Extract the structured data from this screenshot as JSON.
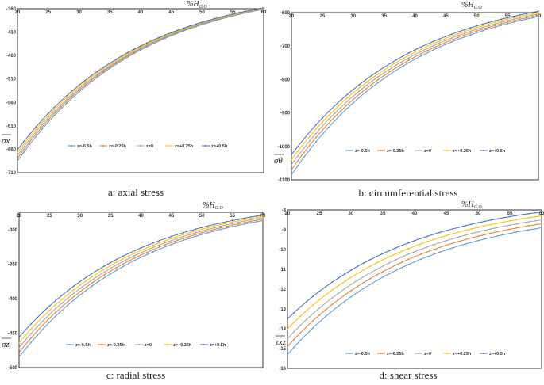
{
  "legend_labels": [
    "z=-0.5h",
    "z=-0.25h",
    "z=0",
    "z=+0.25h",
    "z=+0.5h"
  ],
  "series_colors": [
    "#5B9BD5",
    "#ED7D31",
    "#A5A5A5",
    "#FFC000",
    "#4472C4"
  ],
  "x_title_main": "%H",
  "x_title_sub": "G.O",
  "chart_data": [
    {
      "type": "line",
      "caption": "a: axial stress",
      "y_title": "σx",
      "x_range": [
        20,
        60
      ],
      "x_ticks": [
        "20",
        "25",
        "30",
        "35",
        "40",
        "45",
        "50",
        "55",
        "60"
      ],
      "y_range": [
        -710,
        -360
      ],
      "y_ticks": [
        "-360",
        "-410",
        "-460",
        "-510",
        "-560",
        "-610",
        "-660",
        "-710"
      ],
      "series": [
        {
          "name": "z=-0.5h",
          "start": -685,
          "end": -361
        },
        {
          "name": "z=-0.25h",
          "start": -679,
          "end": -360
        },
        {
          "name": "z=0",
          "start": -673,
          "end": -360
        },
        {
          "name": "z=+0.25h",
          "start": -667,
          "end": -359
        },
        {
          "name": "z=+0.5h",
          "start": -661,
          "end": -358
        }
      ]
    },
    {
      "type": "line",
      "caption": "b: circumferential stress",
      "y_title": "σθ",
      "x_range": [
        20,
        60
      ],
      "x_ticks": [
        "20",
        "25",
        "30",
        "35",
        "40",
        "45",
        "50",
        "55",
        "60"
      ],
      "y_range": [
        -1100,
        -600
      ],
      "y_ticks": [
        "-600",
        "-700",
        "-800",
        "-900",
        "-1000",
        "-1100"
      ],
      "series": [
        {
          "name": "z=-0.5h",
          "start": -1085,
          "end": -612
        },
        {
          "name": "z=-0.25h",
          "start": -1070,
          "end": -608
        },
        {
          "name": "z=0",
          "start": -1055,
          "end": -604
        },
        {
          "name": "z=+0.25h",
          "start": -1040,
          "end": -600
        },
        {
          "name": "z=+0.5h",
          "start": -1025,
          "end": -596
        }
      ]
    },
    {
      "type": "line",
      "caption": "c: radial stress",
      "y_title": "σz",
      "x_range": [
        20,
        60
      ],
      "x_ticks": [
        "20",
        "25",
        "30",
        "35",
        "40",
        "45",
        "50",
        "55",
        "60"
      ],
      "y_range": [
        -500,
        -275
      ],
      "y_ticks": [
        "-300",
        "-350",
        "-400",
        "-450",
        "-500"
      ],
      "series": [
        {
          "name": "z=-0.5h",
          "start": -485,
          "end": -287
        },
        {
          "name": "z=-0.25h",
          "start": -478,
          "end": -285
        },
        {
          "name": "z=0",
          "start": -471,
          "end": -283
        },
        {
          "name": "z=+0.25h",
          "start": -464,
          "end": -281
        },
        {
          "name": "z=+0.5h",
          "start": -456,
          "end": -279
        }
      ]
    },
    {
      "type": "line",
      "caption": "d: shear stress",
      "y_title": "τxz",
      "x_range": [
        20,
        60
      ],
      "x_ticks": [
        "20",
        "25",
        "30",
        "35",
        "40",
        "45",
        "50",
        "55",
        "60"
      ],
      "y_range": [
        -16,
        -8
      ],
      "y_ticks": [
        "-8",
        "-9",
        "-10",
        "-11",
        "-12",
        "-13",
        "-14",
        "-15",
        "-16"
      ],
      "series": [
        {
          "name": "z=-0.5h",
          "start": -15.3,
          "end": -8.9
        },
        {
          "name": "z=-0.25h",
          "start": -14.9,
          "end": -8.7
        },
        {
          "name": "z=0",
          "start": -14.5,
          "end": -8.5
        },
        {
          "name": "z=+0.25h",
          "start": -14.0,
          "end": -8.3
        },
        {
          "name": "z=+0.5h",
          "start": -13.5,
          "end": -8.1
        }
      ]
    }
  ]
}
